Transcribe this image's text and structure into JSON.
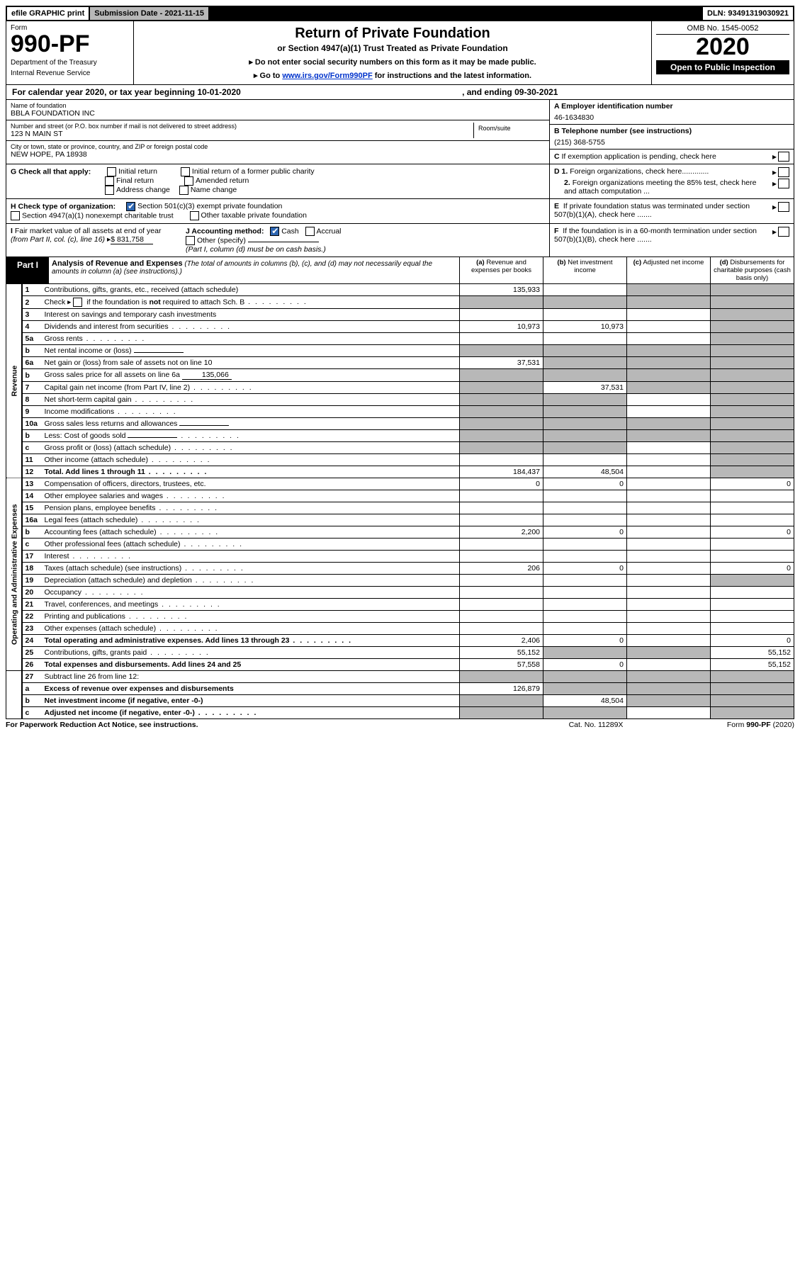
{
  "topbar": {
    "efile": "efile GRAPHIC print",
    "submission": "Submission Date - 2021-11-15",
    "dln": "DLN: 93491319030921"
  },
  "header": {
    "form_label": "Form",
    "form_number": "990-PF",
    "dept1": "Department of the Treasury",
    "dept2": "Internal Revenue Service",
    "title": "Return of Private Foundation",
    "subtitle": "or Section 4947(a)(1) Trust Treated as Private Foundation",
    "instr1": "▸ Do not enter social security numbers on this form as it may be made public.",
    "instr2_pre": "▸ Go to ",
    "instr2_link": "www.irs.gov/Form990PF",
    "instr2_post": " for instructions and the latest information.",
    "omb": "OMB No. 1545-0052",
    "year": "2020",
    "open": "Open to Public Inspection"
  },
  "calendar": {
    "left": "For calendar year 2020, or tax year beginning 10-01-2020",
    "right": ", and ending 09-30-2021"
  },
  "entity": {
    "name_lbl": "Name of foundation",
    "name": "BBLA FOUNDATION INC",
    "addr_lbl": "Number and street (or P.O. box number if mail is not delivered to street address)",
    "addr": "123 N MAIN ST",
    "room_lbl": "Room/suite",
    "city_lbl": "City or town, state or province, country, and ZIP or foreign postal code",
    "city": "NEW HOPE, PA  18938",
    "a_lbl": "A Employer identification number",
    "a_val": "46-1634830",
    "b_lbl": "B Telephone number (see instructions)",
    "b_val": "(215) 368-5755",
    "c_lbl": "C If exemption application is pending, check here",
    "d1": "D 1. Foreign organizations, check here.............",
    "d2": "2. Foreign organizations meeting the 85% test, check here and attach computation ...",
    "e": "E  If private foundation status was terminated under section 507(b)(1)(A), check here .......",
    "f": "F  If the foundation is in a 60-month termination under section 507(b)(1)(B), check here .......",
    "g_lbl": "G Check all that apply:",
    "g_opts": [
      "Initial return",
      "Final return",
      "Address change",
      "Initial return of a former public charity",
      "Amended return",
      "Name change"
    ],
    "h_lbl": "H Check type of organization:",
    "h1": "Section 501(c)(3) exempt private foundation",
    "h2": "Section 4947(a)(1) nonexempt charitable trust",
    "h3": "Other taxable private foundation",
    "i_lbl": "I Fair market value of all assets at end of year (from Part II, col. (c), line 16)",
    "i_val": "$  831,758",
    "j_lbl": "J Accounting method:",
    "j_cash": "Cash",
    "j_accrual": "Accrual",
    "j_other": "Other (specify)",
    "j_note": "(Part I, column (d) must be on cash basis.)"
  },
  "part1": {
    "label": "Part I",
    "title": "Analysis of Revenue and Expenses",
    "title_note": "(The total of amounts in columns (b), (c), and (d) may not necessarily equal the amounts in column (a) (see instructions).)",
    "col_a": "(a)   Revenue and expenses per books",
    "col_b": "(b)   Net investment income",
    "col_c": "(c)   Adjusted net income",
    "col_d": "(d)   Disbursements for charitable purposes (cash basis only)"
  },
  "sidelabels": {
    "revenue": "Revenue",
    "opex": "Operating and Administrative Expenses"
  },
  "rows": [
    {
      "n": "1",
      "d": "Contributions, gifts, grants, etc., received (attach schedule)",
      "a": "135,933",
      "b": "",
      "c": "shade",
      "dv": "shade"
    },
    {
      "n": "2",
      "d": "Check ▸ ☐ if the foundation is not required to attach Sch. B",
      "a": "shade",
      "b": "shade",
      "c": "shade",
      "dv": "shade",
      "dots": true
    },
    {
      "n": "3",
      "d": "Interest on savings and temporary cash investments",
      "a": "",
      "b": "",
      "c": "",
      "dv": "shade"
    },
    {
      "n": "4",
      "d": "Dividends and interest from securities",
      "a": "10,973",
      "b": "10,973",
      "c": "",
      "dv": "shade",
      "dots": true
    },
    {
      "n": "5a",
      "d": "Gross rents",
      "a": "",
      "b": "",
      "c": "",
      "dv": "shade",
      "dots": true
    },
    {
      "n": "b",
      "d": "Net rental income or (loss)",
      "a": "shade",
      "b": "shade",
      "c": "shade",
      "dv": "shade",
      "inline": ""
    },
    {
      "n": "6a",
      "d": "Net gain or (loss) from sale of assets not on line 10",
      "a": "37,531",
      "b": "shade",
      "c": "shade",
      "dv": "shade"
    },
    {
      "n": "b",
      "d": "Gross sales price for all assets on line 6a",
      "a": "shade",
      "b": "shade",
      "c": "shade",
      "dv": "shade",
      "inline": "135,066"
    },
    {
      "n": "7",
      "d": "Capital gain net income (from Part IV, line 2)",
      "a": "shade",
      "b": "37,531",
      "c": "shade",
      "dv": "shade",
      "dots": true
    },
    {
      "n": "8",
      "d": "Net short-term capital gain",
      "a": "shade",
      "b": "shade",
      "c": "",
      "dv": "shade",
      "dots": true
    },
    {
      "n": "9",
      "d": "Income modifications",
      "a": "shade",
      "b": "shade",
      "c": "",
      "dv": "shade",
      "dots": true
    },
    {
      "n": "10a",
      "d": "Gross sales less returns and allowances",
      "a": "shade",
      "b": "shade",
      "c": "shade",
      "dv": "shade",
      "inline": ""
    },
    {
      "n": "b",
      "d": "Less: Cost of goods sold",
      "a": "shade",
      "b": "shade",
      "c": "shade",
      "dv": "shade",
      "inline": "",
      "dots": true
    },
    {
      "n": "c",
      "d": "Gross profit or (loss) (attach schedule)",
      "a": "shade",
      "b": "shade",
      "c": "",
      "dv": "shade",
      "dots": true
    },
    {
      "n": "11",
      "d": "Other income (attach schedule)",
      "a": "",
      "b": "",
      "c": "",
      "dv": "shade",
      "dots": true
    },
    {
      "n": "12",
      "d": "Total. Add lines 1 through 11",
      "a": "184,437",
      "b": "48,504",
      "c": "",
      "dv": "shade",
      "bold": true,
      "dots": true
    }
  ],
  "rows2": [
    {
      "n": "13",
      "d": "Compensation of officers, directors, trustees, etc.",
      "a": "0",
      "b": "0",
      "c": "",
      "dv": "0"
    },
    {
      "n": "14",
      "d": "Other employee salaries and wages",
      "a": "",
      "b": "",
      "c": "",
      "dv": "",
      "dots": true
    },
    {
      "n": "15",
      "d": "Pension plans, employee benefits",
      "a": "",
      "b": "",
      "c": "",
      "dv": "",
      "dots": true
    },
    {
      "n": "16a",
      "d": "Legal fees (attach schedule)",
      "a": "",
      "b": "",
      "c": "",
      "dv": "",
      "dots": true
    },
    {
      "n": "b",
      "d": "Accounting fees (attach schedule)",
      "a": "2,200",
      "b": "0",
      "c": "",
      "dv": "0",
      "dots": true
    },
    {
      "n": "c",
      "d": "Other professional fees (attach schedule)",
      "a": "",
      "b": "",
      "c": "",
      "dv": "",
      "dots": true
    },
    {
      "n": "17",
      "d": "Interest",
      "a": "",
      "b": "",
      "c": "",
      "dv": "",
      "dots": true
    },
    {
      "n": "18",
      "d": "Taxes (attach schedule) (see instructions)",
      "a": "206",
      "b": "0",
      "c": "",
      "dv": "0",
      "dots": true
    },
    {
      "n": "19",
      "d": "Depreciation (attach schedule) and depletion",
      "a": "",
      "b": "",
      "c": "",
      "dv": "shade",
      "dots": true
    },
    {
      "n": "20",
      "d": "Occupancy",
      "a": "",
      "b": "",
      "c": "",
      "dv": "",
      "dots": true
    },
    {
      "n": "21",
      "d": "Travel, conferences, and meetings",
      "a": "",
      "b": "",
      "c": "",
      "dv": "",
      "dots": true
    },
    {
      "n": "22",
      "d": "Printing and publications",
      "a": "",
      "b": "",
      "c": "",
      "dv": "",
      "dots": true
    },
    {
      "n": "23",
      "d": "Other expenses (attach schedule)",
      "a": "",
      "b": "",
      "c": "",
      "dv": "",
      "dots": true
    },
    {
      "n": "24",
      "d": "Total operating and administrative expenses. Add lines 13 through 23",
      "a": "2,406",
      "b": "0",
      "c": "",
      "dv": "0",
      "bold": true,
      "dots": true
    },
    {
      "n": "25",
      "d": "Contributions, gifts, grants paid",
      "a": "55,152",
      "b": "shade",
      "c": "shade",
      "dv": "55,152",
      "dots": true
    },
    {
      "n": "26",
      "d": "Total expenses and disbursements. Add lines 24 and 25",
      "a": "57,558",
      "b": "0",
      "c": "",
      "dv": "55,152",
      "bold": true
    }
  ],
  "rows3": [
    {
      "n": "27",
      "d": "Subtract line 26 from line 12:",
      "a": "shade",
      "b": "shade",
      "c": "shade",
      "dv": "shade"
    },
    {
      "n": "a",
      "d": "Excess of revenue over expenses and disbursements",
      "a": "126,879",
      "b": "shade",
      "c": "shade",
      "dv": "shade",
      "bold": true
    },
    {
      "n": "b",
      "d": "Net investment income (if negative, enter -0-)",
      "a": "shade",
      "b": "48,504",
      "c": "shade",
      "dv": "shade",
      "bold": true
    },
    {
      "n": "c",
      "d": "Adjusted net income (if negative, enter -0-)",
      "a": "shade",
      "b": "shade",
      "c": "",
      "dv": "shade",
      "bold": true,
      "dots": true
    }
  ],
  "footer": {
    "l": "For Paperwork Reduction Act Notice, see instructions.",
    "m": "Cat. No. 11289X",
    "r": "Form 990-PF (2020)"
  },
  "colors": {
    "shade": "#b8b8b8",
    "link": "#0033cc",
    "check": "#2e66b1"
  }
}
